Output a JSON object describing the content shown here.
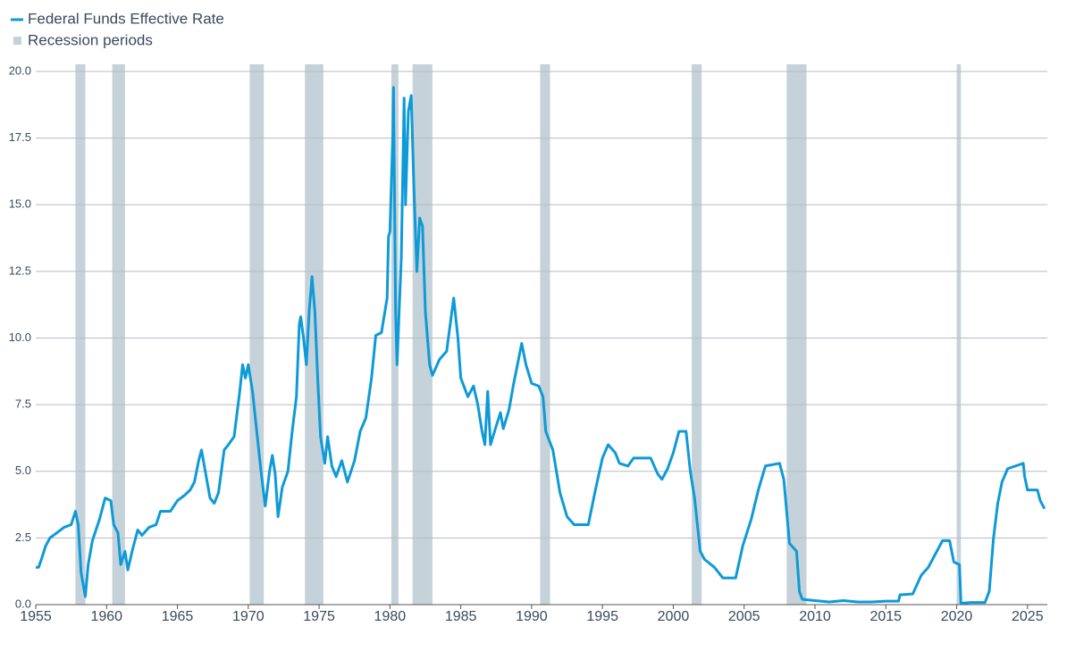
{
  "chart_data": {
    "type": "line",
    "series": [
      {
        "name": "Federal Funds Effective Rate",
        "color": "#0e9ad7",
        "x": [
          1955.0,
          1955.2,
          1955.4,
          1955.7,
          1956.0,
          1956.5,
          1957.0,
          1957.5,
          1957.8,
          1958.0,
          1958.2,
          1958.4,
          1958.5,
          1958.7,
          1959.0,
          1959.5,
          1959.9,
          1960.3,
          1960.5,
          1960.8,
          1961.0,
          1961.3,
          1961.5,
          1961.8,
          1962.2,
          1962.5,
          1963.0,
          1963.5,
          1963.8,
          1964.5,
          1965.0,
          1965.5,
          1965.9,
          1966.2,
          1966.5,
          1966.7,
          1967.0,
          1967.3,
          1967.6,
          1967.9,
          1968.3,
          1968.6,
          1969.0,
          1969.4,
          1969.6,
          1969.8,
          1970.0,
          1970.3,
          1970.6,
          1970.9,
          1971.2,
          1971.5,
          1971.7,
          1971.9,
          1972.1,
          1972.4,
          1972.8,
          1973.1,
          1973.4,
          1973.6,
          1973.7,
          1973.9,
          1974.1,
          1974.3,
          1974.5,
          1974.7,
          1974.9,
          1975.1,
          1975.4,
          1975.6,
          1975.9,
          1976.2,
          1976.6,
          1977.0,
          1977.5,
          1977.9,
          1978.3,
          1978.7,
          1979.0,
          1979.4,
          1979.8,
          1979.9,
          1980.0,
          1980.2,
          1980.25,
          1980.4,
          1980.5,
          1980.8,
          1981.0,
          1981.1,
          1981.3,
          1981.5,
          1981.7,
          1981.9,
          1982.1,
          1982.3,
          1982.5,
          1982.8,
          1983.0,
          1983.5,
          1984.0,
          1984.5,
          1984.8,
          1985.0,
          1985.5,
          1985.9,
          1986.2,
          1986.5,
          1986.7,
          1986.9,
          1987.1,
          1987.5,
          1987.8,
          1988.0,
          1988.4,
          1988.7,
          1989.0,
          1989.3,
          1989.6,
          1990.0,
          1990.5,
          1990.8,
          1991.0,
          1991.5,
          1992.0,
          1992.5,
          1993.0,
          1993.5,
          1994.0,
          1994.5,
          1995.0,
          1995.4,
          1995.9,
          1996.2,
          1996.8,
          1997.2,
          1997.8,
          1998.4,
          1998.9,
          1999.2,
          1999.6,
          2000.0,
          2000.4,
          2000.9,
          2001.2,
          2001.5,
          2001.9,
          2002.2,
          2002.9,
          2003.5,
          2004.4,
          2004.9,
          2005.5,
          2006.0,
          2006.5,
          2007.5,
          2007.8,
          2008.0,
          2008.2,
          2008.7,
          2008.9,
          2009.1,
          2010.0,
          2011.0,
          2012.0,
          2013.0,
          2014.0,
          2015.0,
          2015.9,
          2016.0,
          2016.9,
          2017.5,
          2018.0,
          2018.5,
          2019.0,
          2019.5,
          2019.8,
          2020.2,
          2020.3,
          2021.0,
          2022.0,
          2022.3,
          2022.6,
          2022.9,
          2023.2,
          2023.6,
          2024.7,
          2024.8,
          2025.0,
          2025.7,
          2025.9,
          2026.2
        ],
        "values": [
          1.4,
          1.4,
          1.7,
          2.2,
          2.5,
          2.7,
          2.9,
          3.0,
          3.5,
          3.0,
          1.2,
          0.6,
          0.3,
          1.5,
          2.4,
          3.2,
          4.0,
          3.9,
          3.0,
          2.7,
          1.5,
          2.0,
          1.3,
          2.0,
          2.8,
          2.6,
          2.9,
          3.0,
          3.5,
          3.5,
          3.9,
          4.1,
          4.3,
          4.6,
          5.4,
          5.8,
          4.9,
          4.0,
          3.8,
          4.2,
          5.8,
          6.0,
          6.3,
          8.0,
          9.0,
          8.5,
          9.0,
          8.0,
          6.5,
          5.0,
          3.7,
          5.0,
          5.6,
          4.9,
          3.3,
          4.4,
          5.0,
          6.5,
          7.8,
          10.5,
          10.8,
          10.0,
          9.0,
          11.0,
          12.3,
          11.0,
          8.5,
          6.3,
          5.3,
          6.3,
          5.2,
          4.8,
          5.4,
          4.6,
          5.4,
          6.5,
          7.0,
          8.5,
          10.1,
          10.2,
          11.5,
          13.8,
          14.0,
          17.6,
          19.4,
          11.0,
          9.0,
          13.0,
          19.0,
          15.0,
          18.5,
          19.1,
          15.5,
          12.5,
          14.5,
          14.2,
          11.0,
          9.0,
          8.6,
          9.2,
          9.5,
          11.5,
          10.0,
          8.5,
          7.8,
          8.2,
          7.5,
          6.5,
          6.0,
          8.0,
          6.0,
          6.7,
          7.2,
          6.6,
          7.3,
          8.2,
          9.0,
          9.8,
          9.0,
          8.3,
          8.2,
          7.8,
          6.5,
          5.8,
          4.2,
          3.3,
          3.0,
          3.0,
          3.0,
          4.3,
          5.5,
          6.0,
          5.7,
          5.3,
          5.2,
          5.5,
          5.5,
          5.5,
          4.9,
          4.7,
          5.1,
          5.7,
          6.5,
          6.5,
          5.0,
          4.0,
          2.0,
          1.7,
          1.4,
          1.0,
          1.0,
          2.2,
          3.2,
          4.3,
          5.2,
          5.3,
          4.7,
          3.5,
          2.3,
          2.0,
          0.5,
          0.2,
          0.15,
          0.1,
          0.15,
          0.1,
          0.1,
          0.13,
          0.13,
          0.37,
          0.4,
          1.1,
          1.4,
          1.9,
          2.4,
          2.4,
          1.6,
          1.5,
          0.05,
          0.08,
          0.08,
          0.5,
          2.5,
          3.8,
          4.6,
          5.1,
          5.3,
          4.8,
          4.3,
          4.3,
          3.9,
          3.6
        ]
      }
    ],
    "recessions": {
      "name": "Recession periods",
      "color": "#c6d2da",
      "periods": [
        [
          1957.8,
          1958.5
        ],
        [
          1960.4,
          1961.3
        ],
        [
          1970.1,
          1971.1
        ],
        [
          1974.0,
          1975.3
        ],
        [
          1980.1,
          1980.6
        ],
        [
          1981.6,
          1983.0
        ],
        [
          1990.6,
          1991.3
        ],
        [
          2001.3,
          2002.0
        ],
        [
          2008.0,
          2009.4
        ],
        [
          2020.0,
          2020.3
        ]
      ]
    },
    "xlim": [
      1955,
      2026.4
    ],
    "ylim": [
      0,
      20
    ],
    "xticks": [
      1955,
      1960,
      1965,
      1970,
      1975,
      1980,
      1985,
      1990,
      1995,
      2000,
      2005,
      2010,
      2015,
      2020,
      2025
    ],
    "yticks": [
      {
        "value": 0,
        "label": "0.0"
      },
      {
        "value": 2.5,
        "label": "2.5"
      },
      {
        "value": 5,
        "label": "5.0"
      },
      {
        "value": 7.5,
        "label": "7.5"
      },
      {
        "value": 10,
        "label": "10.0"
      },
      {
        "value": 12.5,
        "label": "12.5"
      },
      {
        "value": 15,
        "label": "15.0"
      },
      {
        "value": 17.5,
        "label": "17.5"
      },
      {
        "value": 20,
        "label": "20.0"
      }
    ],
    "grid": true
  }
}
